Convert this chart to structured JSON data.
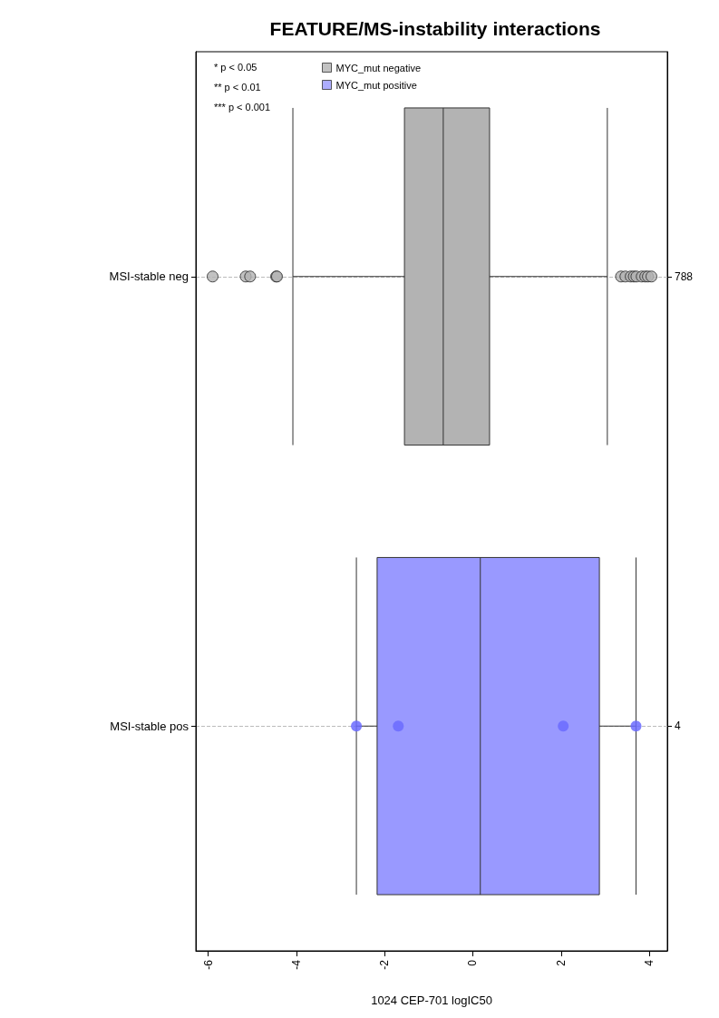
{
  "chart_data": {
    "type": "box",
    "orientation": "horizontal",
    "title": "FEATURE/MS-instability interactions",
    "xlabel": "1024 CEP-701 logIC50",
    "categories": [
      "MSI-stable neg",
      "MSI-stable pos"
    ],
    "y2_categories": [
      "788",
      "4"
    ],
    "xlim": [
      -6.28,
      4.41
    ],
    "xticks": [
      -6,
      -4,
      -2,
      0,
      2,
      4
    ],
    "grid": "y",
    "legend": "top left",
    "annotations": [
      "* p < 0.05",
      "** p < 0.01",
      "*** p < 0.001"
    ],
    "series": [
      {
        "name": "MYC_mut negative",
        "color": "#b3b3b3",
        "boxes": [
          {
            "low": -4.08,
            "q1": -1.55,
            "median": -0.67,
            "q3": 0.38,
            "high": 3.05,
            "outliers": [
              -5.9,
              -5.15,
              -5.05,
              -4.46,
              -4.44,
              3.36,
              3.46,
              3.58,
              3.65,
              3.71,
              3.83,
              3.91,
              3.97,
              4.05
            ]
          },
          null
        ]
      },
      {
        "name": "MYC_mut positive",
        "color": "#9999ff",
        "boxes": [
          null,
          {
            "low": -2.64,
            "q1": -2.17,
            "median": 0.17,
            "q3": 2.87,
            "high": 3.7
          }
        ]
      },
      {
        "type": "scatter",
        "color": "#6b6bff",
        "x": [
          "MSI-stable pos",
          "MSI-stable pos",
          "MSI-stable pos",
          "MSI-stable pos"
        ],
        "values": [
          -2.64,
          -1.69,
          2.05,
          3.7
        ]
      }
    ]
  }
}
